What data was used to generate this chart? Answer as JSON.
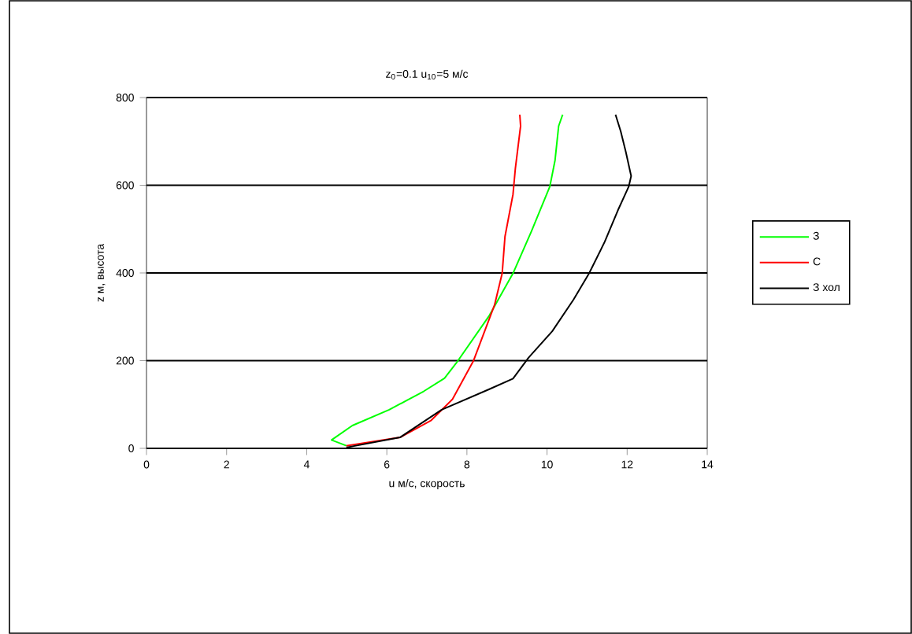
{
  "chart_data": {
    "type": "line",
    "title": "z$_{0}$=0.1    u$_{10}$=5 м/с",
    "xlabel": "u м/с, скорость",
    "ylabel": "z м, высота",
    "xlim": [
      0,
      14
    ],
    "ylim": [
      0,
      800
    ],
    "xticks": [
      0,
      2,
      4,
      6,
      8,
      10,
      12,
      14
    ],
    "yticks": [
      0,
      200,
      400,
      600,
      800
    ],
    "grid": "y",
    "legend": "right",
    "line_style": "solid",
    "series": [
      {
        "name": "З",
        "color": "#00ff00",
        "x": [
          4.99,
          4.62,
          5.14,
          6.06,
          6.92,
          7.44,
          7.77,
          8.56,
          9.15,
          9.61,
          10.07,
          10.2,
          10.29,
          10.39
        ],
        "values": [
          6,
          19,
          52,
          88,
          130,
          160,
          199,
          303,
          399,
          495,
          597,
          657,
          735,
          761
        ]
      },
      {
        "name": "С",
        "color": "#ff0000",
        "x": [
          4.99,
          6.33,
          7.11,
          7.64,
          8.16,
          8.69,
          8.88,
          8.95,
          9.15,
          9.21,
          9.34,
          9.32
        ],
        "values": [
          6,
          25,
          64,
          112,
          199,
          327,
          399,
          483,
          579,
          639,
          735,
          761
        ]
      },
      {
        "name": "З хол",
        "color": "#000000",
        "x": [
          4.99,
          6.33,
          7.37,
          8.56,
          9.15,
          9.54,
          10.13,
          10.66,
          11.05,
          11.44,
          11.77,
          12.04,
          12.1,
          11.97,
          11.84,
          11.71
        ],
        "values": [
          2,
          25,
          88,
          135,
          159,
          207,
          267,
          339,
          399,
          471,
          543,
          597,
          621,
          675,
          723,
          761
        ]
      }
    ]
  }
}
